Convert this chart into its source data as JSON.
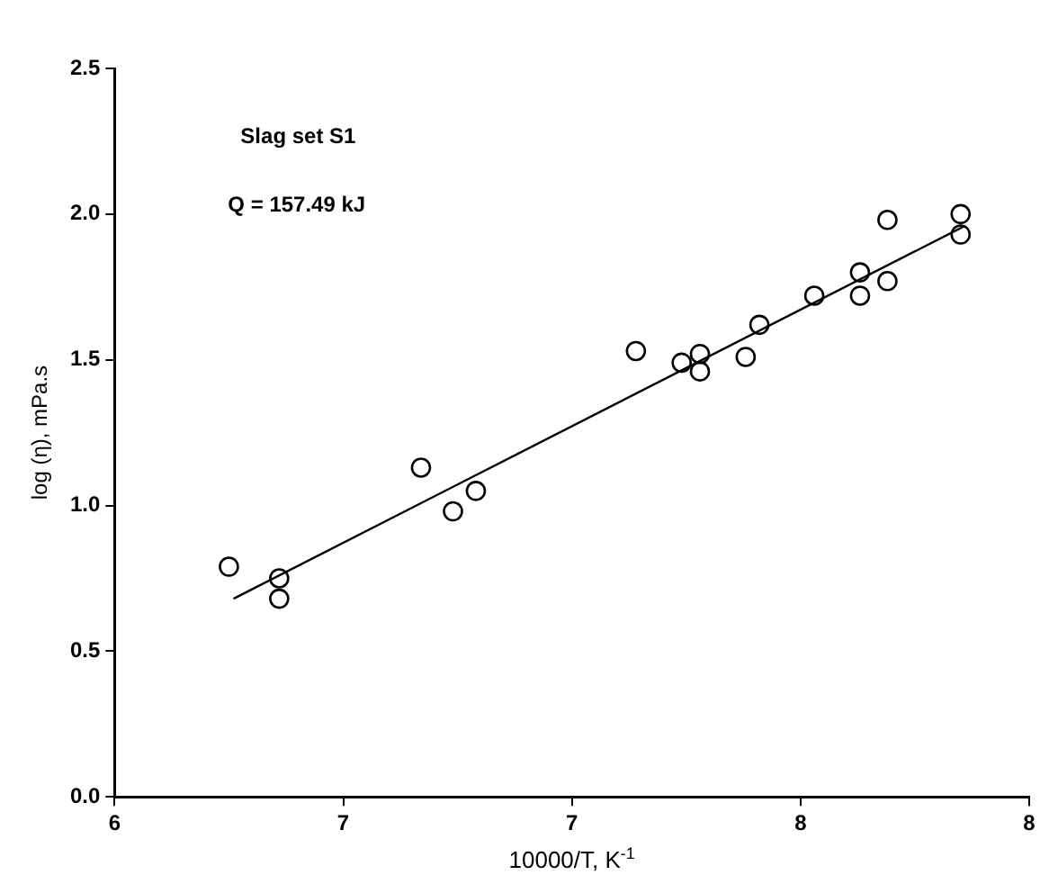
{
  "chart_data": {
    "type": "scatter",
    "xlabel": "10000/T, K$^{-1}$",
    "ylabel": "log (η), mPa.s",
    "annotations": [
      "Slag set S1",
      "Q = 157.49 kJ"
    ],
    "xlim": [
      6,
      8
    ],
    "xticks": [
      6,
      {
        "value": 6.5,
        "label": "7"
      },
      7,
      {
        "value": 7.5,
        "label": "8"
      },
      8
    ],
    "ylim": [
      0,
      2.5
    ],
    "yticks": [
      {
        "value": 0,
        "label": "0.0"
      },
      {
        "value": 0.5,
        "label": "0.5"
      },
      {
        "value": 1,
        "label": "1.0"
      },
      {
        "value": 1.5,
        "label": "1.5"
      },
      {
        "value": 2,
        "label": "2.0"
      },
      {
        "value": 2.5,
        "label": "2.5"
      }
    ],
    "grid": false,
    "legend": false,
    "marker": "circle",
    "series": [
      {
        "type": "scatter",
        "color": "#000000",
        "x": [
          6.25,
          6.36,
          6.36,
          6.67,
          6.74,
          6.79,
          7.14,
          7.24,
          7.28,
          7.28,
          7.38,
          7.41,
          7.53,
          7.63,
          7.63,
          7.69,
          7.69,
          7.85,
          7.85
        ],
        "values": [
          0.79,
          0.75,
          0.68,
          1.13,
          0.98,
          1.05,
          1.53,
          1.49,
          1.52,
          1.46,
          1.51,
          1.62,
          1.72,
          1.8,
          1.72,
          1.98,
          1.77,
          2.0,
          1.93
        ]
      },
      {
        "type": "line",
        "marker": "none",
        "color": "#000000",
        "x": [
          6.26,
          7.86
        ],
        "values": [
          0.68,
          1.96
        ]
      }
    ]
  }
}
